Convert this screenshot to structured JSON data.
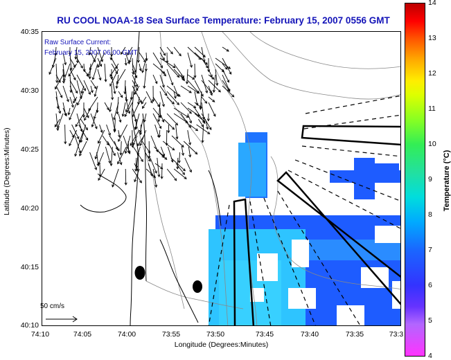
{
  "title": "RU COOL  NOAA-18  Sea Surface Temperature:  February 15, 2007 0556 GMT",
  "current_label_line1": "Raw Surface Current:",
  "current_label_line2": "February 15, 2007 06:00 GMT",
  "scale_label": "50 cm/s",
  "axes": {
    "ylabel": "Latitude (Degrees:Minutes)",
    "xlabel": "Longitude (Degrees:Minutes)",
    "yticks": [
      "40:35",
      "40:30",
      "40:25",
      "40:20",
      "40:15",
      "40:10"
    ],
    "xticks": [
      "74:10",
      "74:05",
      "74:00",
      "73:55",
      "73:50",
      "73:45",
      "73:40",
      "73:35",
      "73:3"
    ]
  },
  "colorbar": {
    "label": "Temperature (°C)",
    "ticks": [
      "14",
      "13",
      "12",
      "11",
      "10",
      "9",
      "8",
      "7",
      "6",
      "5",
      "4"
    ]
  },
  "colors": {
    "title": "#1414b8",
    "sst_blue": "#1e5cff",
    "sst_cyan": "#2ec4ff",
    "land": "#ffffff"
  }
}
